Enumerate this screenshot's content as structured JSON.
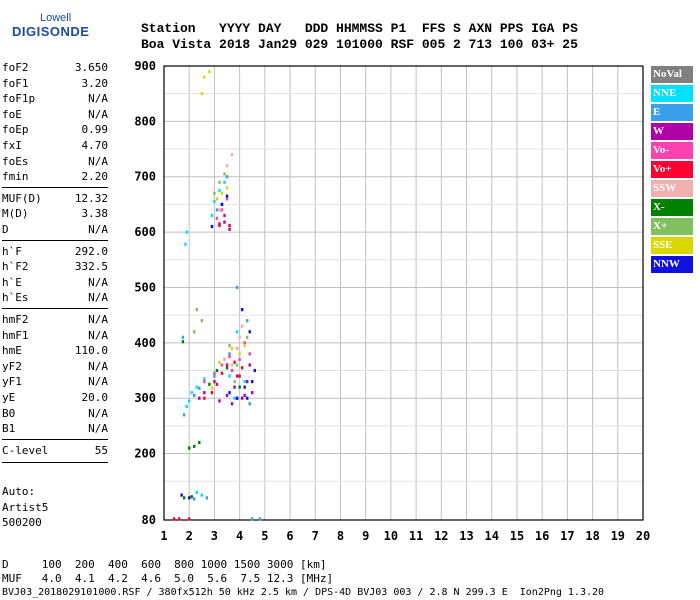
{
  "logo": {
    "top": "Lowell",
    "bottom": "DIGISONDE"
  },
  "header": {
    "line1": "Station   YYYY DAY   DDD HHMMSS P1  FFS S AXN PPS IGA PS",
    "line2": "Boa Vista 2018 Jan29 029 101000 RSF 005 2 713 100 03+ 25"
  },
  "params": [
    {
      "group": 1,
      "key": "foF2",
      "value": "3.650"
    },
    {
      "group": 1,
      "key": "foF1",
      "value": "3.20"
    },
    {
      "group": 1,
      "key": "foF1p",
      "value": "N/A"
    },
    {
      "group": 1,
      "key": "foE",
      "value": "N/A"
    },
    {
      "group": 1,
      "key": "foEp",
      "value": "0.99"
    },
    {
      "group": 1,
      "key": "fxI",
      "value": "4.70"
    },
    {
      "group": 1,
      "key": "foEs",
      "value": "N/A"
    },
    {
      "group": 1,
      "key": "fmin",
      "value": "2.20"
    },
    {
      "group": 2,
      "key": "MUF(D)",
      "value": "12.32"
    },
    {
      "group": 2,
      "key": "M(D)",
      "value": "3.38"
    },
    {
      "group": 2,
      "key": "D",
      "value": "N/A"
    },
    {
      "group": 3,
      "key": "h`F",
      "value": "292.0"
    },
    {
      "group": 3,
      "key": "h`F2",
      "value": "332.5"
    },
    {
      "group": 3,
      "key": "h`E",
      "value": "N/A"
    },
    {
      "group": 3,
      "key": "h`Es",
      "value": "N/A"
    },
    {
      "group": 4,
      "key": "hmF2",
      "value": "N/A"
    },
    {
      "group": 4,
      "key": "hmF1",
      "value": "N/A"
    },
    {
      "group": 4,
      "key": "hmE",
      "value": "110.0"
    },
    {
      "group": 4,
      "key": "yF2",
      "value": "N/A"
    },
    {
      "group": 4,
      "key": "yF1",
      "value": "N/A"
    },
    {
      "group": 4,
      "key": "yE",
      "value": "20.0"
    },
    {
      "group": 4,
      "key": "B0",
      "value": "N/A"
    },
    {
      "group": 4,
      "key": "B1",
      "value": "N/A"
    },
    {
      "group": 5,
      "key": "C-level",
      "value": "55"
    }
  ],
  "auto": {
    "line1": "Auto:",
    "line2": "Artist5",
    "line3": "500200"
  },
  "footer": {
    "line1": "D     100  200  400  600  800 1000 1500 3000 [km]",
    "line2": "MUF   4.0  4.1  4.2  4.6  5.0  5.6  7.5 12.3 [MHz]",
    "line3": "BVJ03_2018029101000.RSF / 380fx512h 50 kHz 2.5 km / DPS-4D BVJ03 003 / 2.8 N 299.3 E  Ion2Png 1.3.20"
  },
  "legend": [
    {
      "label": "NoVal",
      "color": "#808080"
    },
    {
      "label": "NNE",
      "color": "#00e0ff"
    },
    {
      "label": "E",
      "color": "#3a9ee8"
    },
    {
      "label": "W",
      "color": "#b000a8"
    },
    {
      "label": "Vo-",
      "color": "#ff40b0"
    },
    {
      "label": "Vo+",
      "color": "#ff0030"
    },
    {
      "label": "SSW",
      "color": "#f0b0b0"
    },
    {
      "label": "X-",
      "color": "#008000"
    },
    {
      "label": "X+",
      "color": "#80c060"
    },
    {
      "label": "SSE",
      "color": "#d8d800"
    },
    {
      "label": "NNW",
      "color": "#1010e0"
    }
  ],
  "chart_data": {
    "type": "scatter",
    "title": "",
    "xlabel": "",
    "ylabel": "",
    "xlim": [
      1,
      20
    ],
    "ylim": [
      80,
      900
    ],
    "x_ticks": [
      1,
      2,
      3,
      4,
      5,
      6,
      7,
      8,
      9,
      10,
      11,
      12,
      13,
      14,
      15,
      16,
      17,
      18,
      19,
      20
    ],
    "y_ticks": [
      80,
      200,
      300,
      400,
      500,
      600,
      700,
      800,
      900
    ],
    "grid": true,
    "legend_position": "right",
    "series": [
      {
        "name": "NNE",
        "color": "#00e0ff",
        "points": [
          [
            1.9,
            285
          ],
          [
            2.0,
            295
          ],
          [
            2.1,
            310
          ],
          [
            2.3,
            320
          ],
          [
            2.6,
            335
          ],
          [
            3.4,
            370
          ],
          [
            3.8,
            300
          ],
          [
            3.9,
            420
          ],
          [
            2.9,
            630
          ],
          [
            3.0,
            655
          ],
          [
            3.2,
            675
          ],
          [
            3.4,
            690
          ],
          [
            1.9,
            600
          ],
          [
            1.85,
            578
          ],
          [
            2.3,
            130
          ],
          [
            2.5,
            125
          ],
          [
            4.2,
            330
          ],
          [
            3.6,
            340
          ]
        ]
      },
      {
        "name": "E",
        "color": "#3a9ee8",
        "points": [
          [
            1.8,
            270
          ],
          [
            2.2,
            305
          ],
          [
            2.4,
            318
          ],
          [
            3.0,
            340
          ],
          [
            3.6,
            380
          ],
          [
            4.1,
            460
          ],
          [
            4.3,
            440
          ],
          [
            3.1,
            640
          ],
          [
            3.5,
            700
          ],
          [
            1.75,
            410
          ],
          [
            2.2,
            118
          ],
          [
            4.5,
            82
          ],
          [
            4.8,
            82
          ],
          [
            2.7,
            120
          ],
          [
            4.4,
            290
          ],
          [
            3.9,
            500
          ]
        ]
      },
      {
        "name": "W",
        "color": "#b000a8",
        "points": [
          [
            3.2,
            295
          ],
          [
            3.5,
            305
          ],
          [
            3.8,
            320
          ],
          [
            4.0,
            340
          ],
          [
            4.3,
            330
          ],
          [
            4.5,
            310
          ],
          [
            3.7,
            290
          ],
          [
            4.1,
            300
          ],
          [
            3.4,
            618
          ],
          [
            3.6,
            605
          ],
          [
            3.2,
            612
          ],
          [
            2.4,
            300
          ],
          [
            2.6,
            310
          ],
          [
            4.4,
            360
          ],
          [
            3.9,
            300
          ],
          [
            4.2,
            305
          ]
        ]
      },
      {
        "name": "Vo-",
        "color": "#ff40b0",
        "points": [
          [
            3.0,
            345
          ],
          [
            3.3,
            360
          ],
          [
            3.6,
            375
          ],
          [
            3.9,
            390
          ],
          [
            4.2,
            400
          ],
          [
            3.1,
            625
          ],
          [
            3.3,
            640
          ],
          [
            3.5,
            660
          ],
          [
            2.6,
            330
          ],
          [
            4.0,
            370
          ],
          [
            3.7,
            350
          ],
          [
            4.4,
            380
          ]
        ]
      },
      {
        "name": "Vo+",
        "color": "#ff0030",
        "points": [
          [
            2.6,
            300
          ],
          [
            2.9,
            310
          ],
          [
            3.1,
            325
          ],
          [
            3.3,
            345
          ],
          [
            3.5,
            360
          ],
          [
            3.8,
            365
          ],
          [
            4.1,
            355
          ],
          [
            3.2,
            615
          ],
          [
            3.4,
            630
          ],
          [
            3.6,
            612
          ],
          [
            1.4,
            82
          ],
          [
            1.6,
            82
          ],
          [
            2.0,
            82
          ],
          [
            3.0,
            330
          ],
          [
            3.9,
            340
          ]
        ]
      },
      {
        "name": "SSW",
        "color": "#f0b0b0",
        "points": [
          [
            3.4,
            370
          ],
          [
            3.7,
            360
          ],
          [
            4.0,
            410
          ],
          [
            3.2,
            640
          ],
          [
            3.5,
            720
          ],
          [
            3.7,
            740
          ],
          [
            4.1,
            430
          ],
          [
            3.9,
            390
          ]
        ]
      },
      {
        "name": "X-",
        "color": "#008000",
        "points": [
          [
            2.0,
            210
          ],
          [
            2.2,
            213
          ],
          [
            2.4,
            220
          ],
          [
            1.8,
            120
          ],
          [
            2.1,
            122
          ],
          [
            3.1,
            350
          ],
          [
            3.5,
            355
          ],
          [
            2.8,
            325
          ],
          [
            3.3,
            650
          ],
          [
            1.75,
            402
          ],
          [
            4.0,
            320
          ]
        ]
      },
      {
        "name": "X+",
        "color": "#80c060",
        "points": [
          [
            2.5,
            440
          ],
          [
            2.3,
            460
          ],
          [
            3.2,
            690
          ],
          [
            3.4,
            705
          ],
          [
            3.0,
            670
          ],
          [
            3.6,
            395
          ],
          [
            3.9,
            360
          ],
          [
            2.2,
            420
          ],
          [
            4.3,
            410
          ],
          [
            3.8,
            330
          ]
        ]
      },
      {
        "name": "SSE",
        "color": "#d8d800",
        "points": [
          [
            2.5,
            850
          ],
          [
            2.6,
            880
          ],
          [
            2.8,
            890
          ],
          [
            3.1,
            660
          ],
          [
            3.3,
            670
          ],
          [
            3.5,
            680
          ],
          [
            3.7,
            390
          ],
          [
            4.0,
            380
          ],
          [
            3.2,
            365
          ],
          [
            4.2,
            395
          ],
          [
            2.9,
            318
          ]
        ]
      },
      {
        "name": "NNW",
        "color": "#1010e0",
        "points": [
          [
            3.9,
            300
          ],
          [
            4.2,
            320
          ],
          [
            4.5,
            330
          ],
          [
            4.6,
            350
          ],
          [
            3.6,
            310
          ],
          [
            4.3,
            300
          ],
          [
            3.3,
            650
          ],
          [
            3.5,
            665
          ],
          [
            1.7,
            125
          ],
          [
            2.0,
            120
          ],
          [
            4.1,
            460
          ],
          [
            4.4,
            420
          ],
          [
            2.9,
            610
          ]
        ]
      }
    ]
  }
}
